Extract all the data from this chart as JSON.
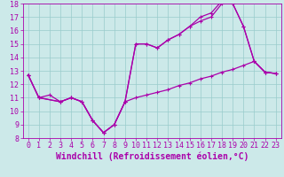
{
  "xlabel": "Windchill (Refroidissement éolien,°C)",
  "xlim": [
    -0.5,
    23.5
  ],
  "ylim": [
    8,
    18
  ],
  "yticks": [
    8,
    9,
    10,
    11,
    12,
    13,
    14,
    15,
    16,
    17,
    18
  ],
  "xticks": [
    0,
    1,
    2,
    3,
    4,
    5,
    6,
    7,
    8,
    9,
    10,
    11,
    12,
    13,
    14,
    15,
    16,
    17,
    18,
    19,
    20,
    21,
    22,
    23
  ],
  "background_color": "#cce9e9",
  "line_color": "#aa00aa",
  "grid_color": "#99cccc",
  "line1_x": [
    0,
    1,
    3,
    4,
    5,
    6,
    7,
    8,
    9,
    10,
    11,
    12,
    13,
    14,
    15,
    16,
    17,
    18,
    19,
    20,
    21,
    22,
    23
  ],
  "line1_y": [
    12.7,
    11.0,
    10.7,
    11.0,
    10.7,
    9.3,
    8.4,
    9.0,
    10.7,
    15.0,
    15.0,
    14.7,
    15.3,
    15.7,
    16.3,
    16.7,
    17.0,
    18.0,
    18.0,
    16.3,
    13.7,
    12.9,
    12.8
  ],
  "line2_x": [
    0,
    1,
    3,
    4,
    5,
    6,
    7,
    8,
    9,
    10,
    11,
    12,
    13,
    14,
    15,
    16,
    17,
    18,
    19,
    20,
    21,
    22,
    23
  ],
  "line2_y": [
    12.7,
    11.0,
    10.7,
    11.0,
    10.7,
    9.3,
    8.4,
    9.0,
    10.7,
    15.0,
    15.0,
    14.7,
    15.3,
    15.7,
    16.3,
    17.0,
    17.3,
    18.2,
    18.0,
    16.3,
    13.7,
    12.9,
    12.8
  ],
  "line3_x": [
    0,
    1,
    2,
    3,
    4,
    5,
    6,
    7,
    8,
    9,
    10,
    11,
    12,
    13,
    14,
    15,
    16,
    17,
    18,
    19,
    20,
    21,
    22,
    23
  ],
  "line3_y": [
    12.7,
    11.0,
    11.2,
    10.7,
    11.0,
    10.7,
    9.3,
    8.4,
    9.0,
    10.7,
    11.0,
    11.2,
    11.4,
    11.6,
    11.9,
    12.1,
    12.4,
    12.6,
    12.9,
    13.1,
    13.4,
    13.7,
    12.9,
    12.8
  ],
  "tick_fontsize": 6,
  "xlabel_fontsize": 7
}
